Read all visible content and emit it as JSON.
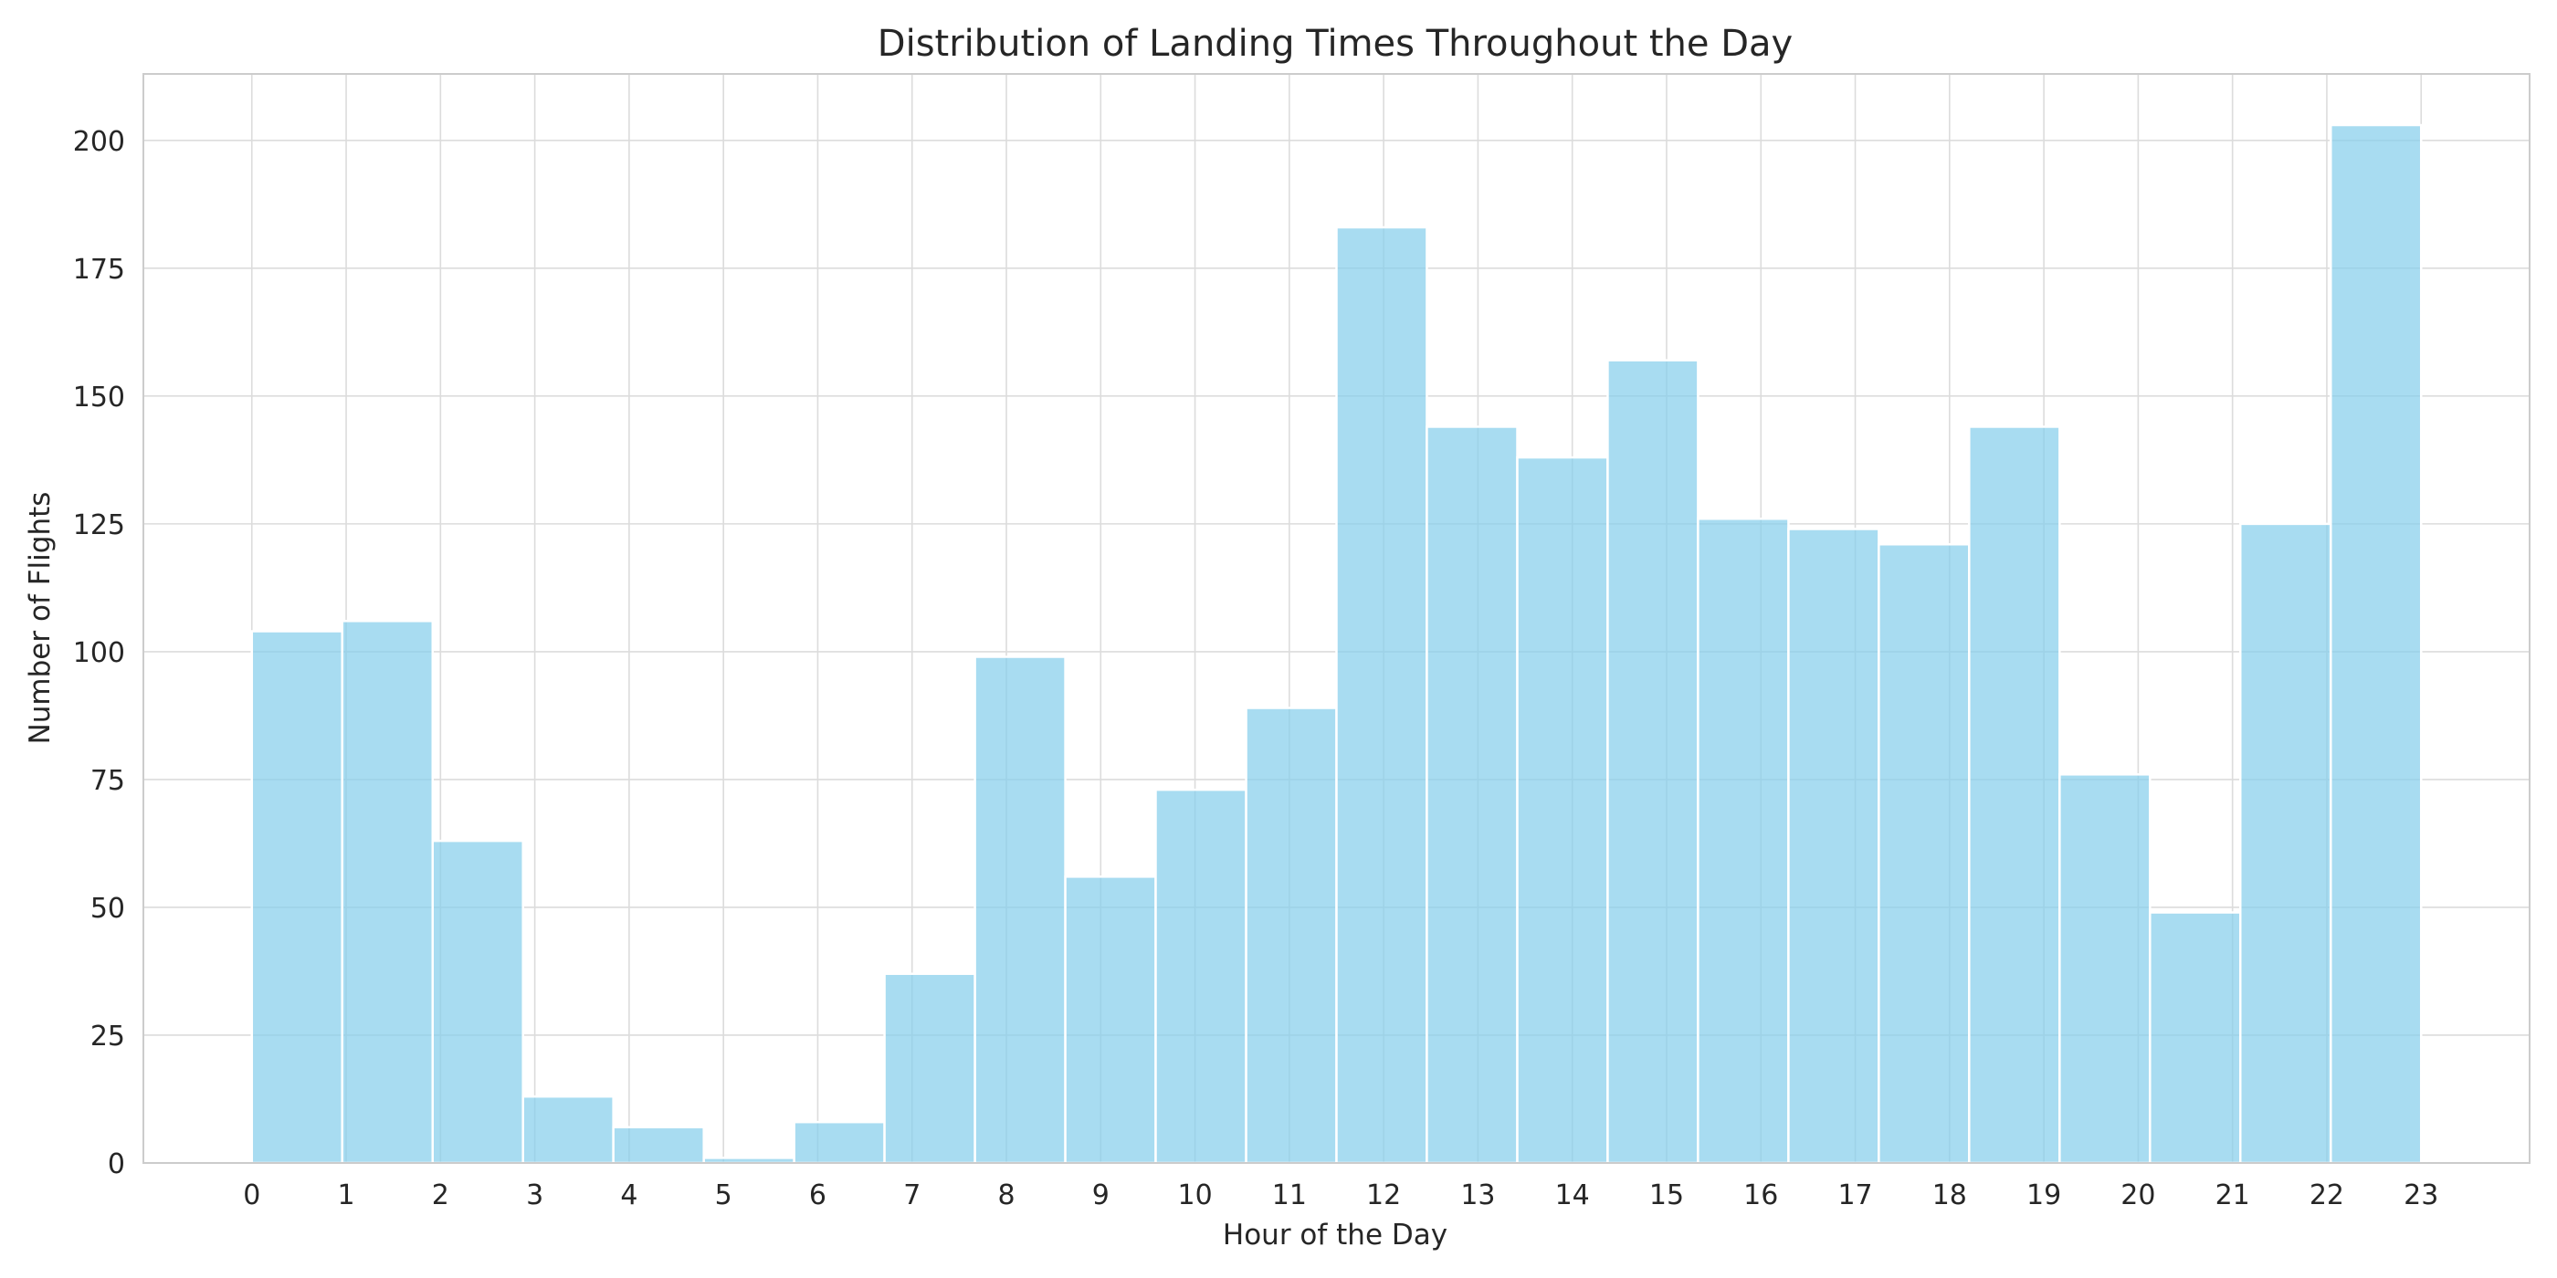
{
  "chart_data": {
    "type": "bar",
    "title": "Distribution of Landing Times Throughout the Day",
    "xlabel": "Hour of the Day",
    "ylabel": "Number of Flights",
    "categories": [
      "0",
      "1",
      "2",
      "3",
      "4",
      "5",
      "6",
      "7",
      "8",
      "9",
      "10",
      "11",
      "12",
      "13",
      "14",
      "15",
      "16",
      "17",
      "18",
      "19",
      "20",
      "21",
      "22",
      "23"
    ],
    "bins": [
      {
        "start": 0.0,
        "end": 0.958,
        "value": 104
      },
      {
        "start": 0.958,
        "end": 1.917,
        "value": 106
      },
      {
        "start": 1.917,
        "end": 2.875,
        "value": 63
      },
      {
        "start": 2.875,
        "end": 3.833,
        "value": 13
      },
      {
        "start": 3.833,
        "end": 4.792,
        "value": 7
      },
      {
        "start": 4.792,
        "end": 5.75,
        "value": 1
      },
      {
        "start": 5.75,
        "end": 6.708,
        "value": 8
      },
      {
        "start": 6.708,
        "end": 7.667,
        "value": 37
      },
      {
        "start": 7.667,
        "end": 8.625,
        "value": 99
      },
      {
        "start": 8.625,
        "end": 9.583,
        "value": 56
      },
      {
        "start": 9.583,
        "end": 10.542,
        "value": 73
      },
      {
        "start": 10.542,
        "end": 11.5,
        "value": 89
      },
      {
        "start": 11.5,
        "end": 12.458,
        "value": 183
      },
      {
        "start": 12.458,
        "end": 13.417,
        "value": 144
      },
      {
        "start": 13.417,
        "end": 14.375,
        "value": 138
      },
      {
        "start": 14.375,
        "end": 15.333,
        "value": 157
      },
      {
        "start": 15.333,
        "end": 16.292,
        "value": 126
      },
      {
        "start": 16.292,
        "end": 17.25,
        "value": 124
      },
      {
        "start": 17.25,
        "end": 18.208,
        "value": 121
      },
      {
        "start": 18.208,
        "end": 19.167,
        "value": 144
      },
      {
        "start": 19.167,
        "end": 20.125,
        "value": 76
      },
      {
        "start": 20.125,
        "end": 21.083,
        "value": 49
      },
      {
        "start": 21.083,
        "end": 22.042,
        "value": 125
      },
      {
        "start": 22.042,
        "end": 23.0,
        "value": 203
      }
    ],
    "xticks": [
      0,
      1,
      2,
      3,
      4,
      5,
      6,
      7,
      8,
      9,
      10,
      11,
      12,
      13,
      14,
      15,
      16,
      17,
      18,
      19,
      20,
      21,
      22,
      23
    ],
    "yticks": [
      0,
      25,
      50,
      75,
      100,
      125,
      150,
      175,
      200
    ],
    "xlim": [
      -1.15,
      24.15
    ],
    "ylim": [
      0,
      213
    ],
    "grid": true,
    "legend": "none",
    "colors": {
      "bar": "#87CEEB",
      "bar_opacity": 0.72,
      "grid": "#dcdcdc",
      "spine": "#cccccc",
      "text": "#262626"
    }
  }
}
